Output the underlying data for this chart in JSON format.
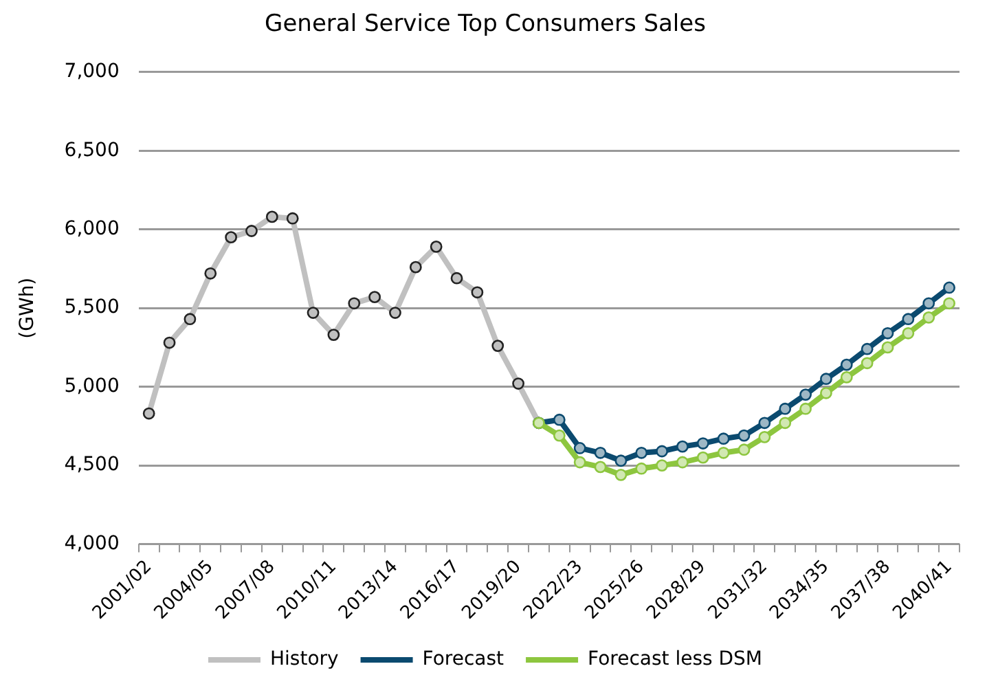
{
  "chart_data": {
    "type": "line",
    "title": "General Service Top Consumers Sales",
    "ylabel": "(GWh)",
    "categories": [
      "2001/02",
      null,
      null,
      "2004/05",
      null,
      null,
      "2007/08",
      null,
      null,
      "2010/11",
      null,
      null,
      "2013/14",
      null,
      null,
      "2016/17",
      null,
      null,
      "2019/20",
      null,
      null,
      "2022/23",
      null,
      null,
      "2025/26",
      null,
      null,
      "2028/29",
      null,
      null,
      "2031/32",
      null,
      null,
      "2034/35",
      null,
      null,
      "2037/38",
      null,
      null,
      "2040/41"
    ],
    "series": [
      {
        "name": "History",
        "color": "#c0c0c0",
        "values": [
          4830,
          5280,
          5430,
          5720,
          5950,
          5990,
          6080,
          6070,
          5470,
          5330,
          5530,
          5570,
          5470,
          5760,
          5890,
          5690,
          5600,
          5260,
          5020,
          4770,
          null,
          null,
          null,
          null,
          null,
          null,
          null,
          null,
          null,
          null,
          null,
          null,
          null,
          null,
          null,
          null,
          null,
          null,
          null,
          null
        ]
      },
      {
        "name": "Forecast",
        "color": "#0b4a6f",
        "values": [
          null,
          null,
          null,
          null,
          null,
          null,
          null,
          null,
          null,
          null,
          null,
          null,
          null,
          null,
          null,
          null,
          null,
          null,
          null,
          4770,
          4790,
          4610,
          4580,
          4530,
          4580,
          4590,
          4620,
          4640,
          4670,
          4690,
          4770,
          4860,
          4950,
          5050,
          5140,
          5240,
          5340,
          5430,
          5530,
          5630
        ]
      },
      {
        "name": "Forecast less DSM",
        "color": "#8dc63f",
        "values": [
          null,
          null,
          null,
          null,
          null,
          null,
          null,
          null,
          null,
          null,
          null,
          null,
          null,
          null,
          null,
          null,
          null,
          null,
          null,
          4770,
          4690,
          4520,
          4490,
          4440,
          4480,
          4500,
          4520,
          4550,
          4580,
          4600,
          4680,
          4770,
          4860,
          4960,
          5060,
          5150,
          5250,
          5340,
          5440,
          5530
        ]
      }
    ],
    "ylim": [
      4000,
      7000
    ],
    "yticks": [
      {
        "value": 4000,
        "label": "4,000"
      },
      {
        "value": 4500,
        "label": "4,500"
      },
      {
        "value": 5000,
        "label": "5,000"
      },
      {
        "value": 5500,
        "label": "5,500"
      },
      {
        "value": 6000,
        "label": "6,000"
      },
      {
        "value": 6500,
        "label": "6,500"
      },
      {
        "value": 7000,
        "label": "7,000"
      }
    ],
    "grid": "y",
    "legend": "bottom",
    "marker": "circle",
    "line_style": "solid"
  }
}
